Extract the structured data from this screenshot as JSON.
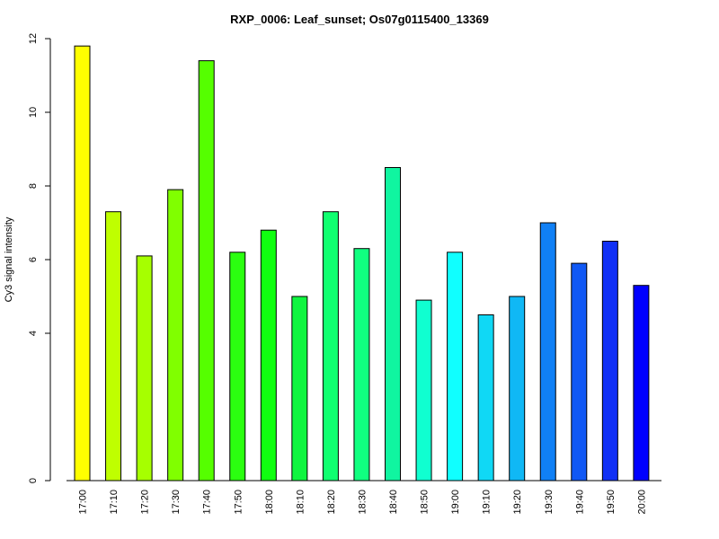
{
  "chart_data": {
    "type": "bar",
    "title": "RXP_0006: Leaf_sunset; Os07g0115400_13369",
    "xlabel": "",
    "ylabel": "Cy3 signal intensity",
    "ylim": [
      0,
      12
    ],
    "yticks": [
      0,
      4,
      6,
      8,
      10,
      12
    ],
    "grid": false,
    "legend": "none",
    "categories": [
      "17:00",
      "17:10",
      "17:20",
      "17:30",
      "17:40",
      "17:50",
      "18:00",
      "18:10",
      "18:20",
      "18:30",
      "18:40",
      "18:50",
      "19:00",
      "19:10",
      "19:20",
      "19:30",
      "19:40",
      "19:50",
      "20:00"
    ],
    "values": [
      11.8,
      7.3,
      6.1,
      7.9,
      11.4,
      6.2,
      6.8,
      5.0,
      7.3,
      6.3,
      8.5,
      4.9,
      6.2,
      4.5,
      5.0,
      7.0,
      5.9,
      6.5,
      5.3
    ],
    "colors": [
      "#FFFF00",
      "#BFFF00",
      "#A6FF00",
      "#80FF00",
      "#55FF00",
      "#2BFF10",
      "#10FF10",
      "#10F540",
      "#10FF70",
      "#10FF80",
      "#10F5A0",
      "#10FFD0",
      "#10FFFF",
      "#10D8F5",
      "#10B8F5",
      "#1080F5",
      "#1058F5",
      "#1030F5",
      "#0000FF"
    ]
  }
}
